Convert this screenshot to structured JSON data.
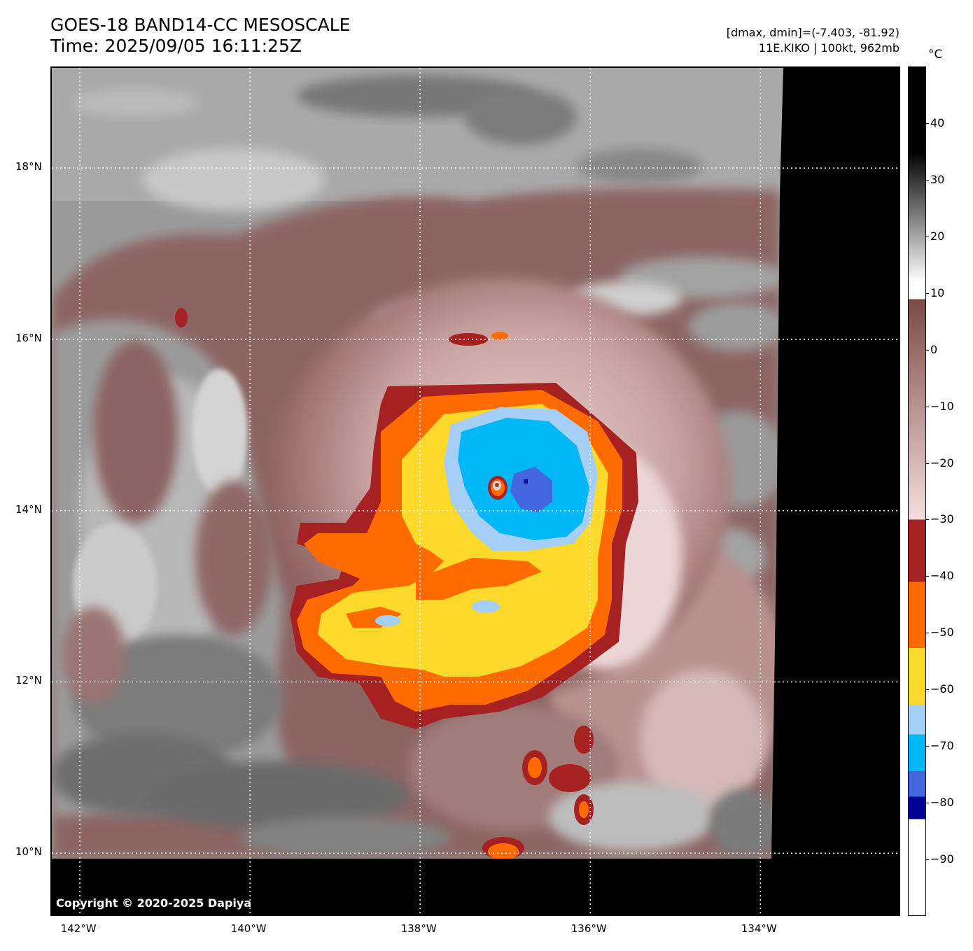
{
  "header": {
    "title_line1": "GOES-18 BAND14-CC MESOSCALE",
    "title_line2": "Time: 2025/09/05 16:11:25Z",
    "info_line1": "[dmax, dmin]=(-7.403, -81.92)",
    "info_line2": "11E.KIKO | 100kt, 962mb"
  },
  "map": {
    "lat_labels": [
      "18°N",
      "16°N",
      "14°N",
      "12°N",
      "10°N"
    ],
    "lon_labels": [
      "142°W",
      "140°W",
      "138°W",
      "136°W",
      "134°W"
    ],
    "lat_values": [
      18,
      16,
      14,
      12,
      10
    ],
    "lon_values": [
      -142,
      -140,
      -138,
      -136,
      -134
    ],
    "extent": {
      "lon_min": -142.33,
      "lon_max": -132.34,
      "lat_min": 9.25,
      "lat_max": 19.17
    },
    "storm_center": {
      "lon": -137.1,
      "lat": 14.2
    },
    "copyright": "Copyright © 2020-2025 Dapiya",
    "gridline_color": "#ffffff",
    "no_data_color": "#000000"
  },
  "colorbar": {
    "unit": "°C",
    "tick_labels": [
      "40",
      "30",
      "20",
      "10",
      "0",
      "−10",
      "−20",
      "−30",
      "−40",
      "−50",
      "−60",
      "−70",
      "−80",
      "−90"
    ],
    "tick_values": [
      40,
      30,
      20,
      10,
      0,
      -10,
      -20,
      -30,
      -40,
      -50,
      -60,
      -70,
      -80,
      -90
    ],
    "range": [
      -100,
      50
    ],
    "colors": {
      "gray_ramp_warm": "#000000",
      "gray_ramp_cool": "#ffffff",
      "brown_ramp_warm": "#7a4a46",
      "brown_ramp_cool": "#f6dede",
      "minus30_to_minus40": "#a62222",
      "minus40_to_minus52": "#ff6b00",
      "minus52_to_minus62": "#fdd92c",
      "minus62_to_minus68": "#a6cff7",
      "minus68_to_minus75": "#00b8f5",
      "minus75_to_minus80": "#4466e0",
      "minus80_to_minus84": "#000094",
      "below_minus84": "#ffffff"
    }
  }
}
